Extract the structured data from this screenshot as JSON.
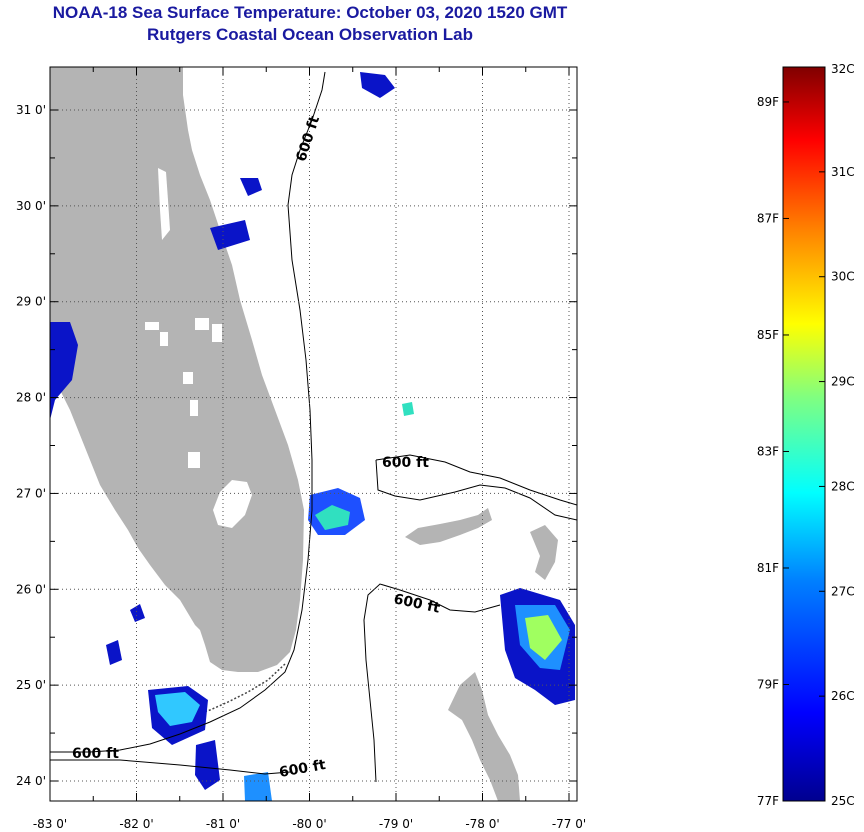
{
  "title": "NOAA-18 Sea Surface Temperature:  October 03, 2020 1520 GMT",
  "subtitle": "Rutgers Coastal Ocean Observation Lab",
  "lat_labels": [
    "31 0'",
    "30 0'",
    "29 0'",
    "28 0'",
    "27 0'",
    "26 0'",
    "25 0'",
    "24 0'"
  ],
  "lat_values": [
    31,
    30,
    29,
    28,
    27,
    26,
    25,
    24
  ],
  "lon_labels": [
    "-83 0'",
    "-82 0'",
    "-81 0'",
    "-80 0'",
    "-79 0'",
    "-78 0'",
    "-77 0'"
  ],
  "lon_values": [
    -83,
    -82,
    -81,
    -80,
    -79,
    -78,
    -77
  ],
  "depth_contour_label": "600 ft",
  "colorbar": {
    "celsius_labels": [
      "32C",
      "31C",
      "30C",
      "29C",
      "28C",
      "27C",
      "26C",
      "25C"
    ],
    "celsius_values": [
      32,
      31,
      30,
      29,
      28,
      27,
      26,
      25
    ],
    "fahrenheit_labels": [
      "89F",
      "87F",
      "85F",
      "83F",
      "81F",
      "79F",
      "77F"
    ],
    "fahrenheit_values": [
      89,
      87,
      85,
      83,
      81,
      79,
      77
    ],
    "min_c": 25,
    "max_c": 32
  },
  "colors": {
    "land": "#b4b4b4",
    "title": "#1a1aa0"
  }
}
